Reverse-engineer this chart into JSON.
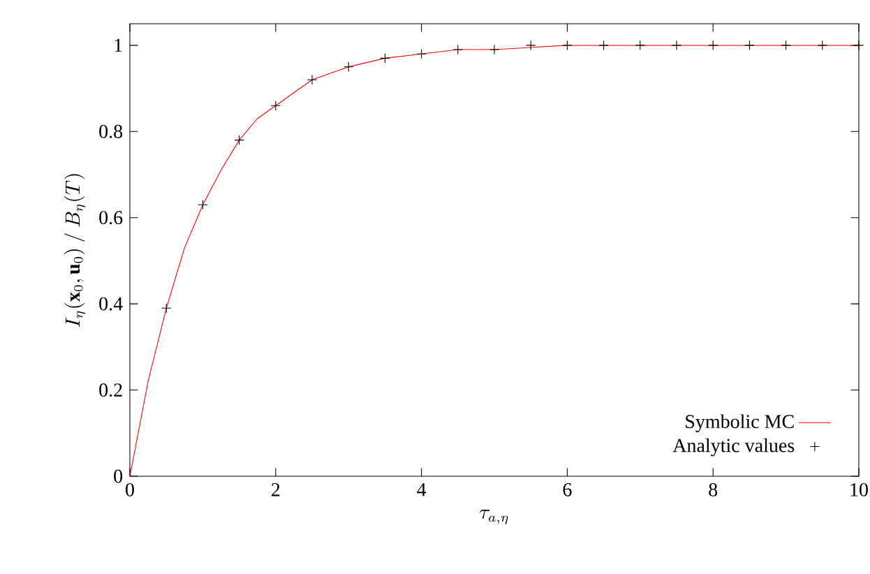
{
  "chart_data": {
    "type": "line",
    "xlabel": "\\tau_{a,\\eta}",
    "ylabel": "I_\\eta(\\mathbf{x}_0, \\mathbf{u}_0)\\ /\\ B_\\eta(T)",
    "xlim": [
      0,
      10
    ],
    "ylim": [
      0,
      1.05
    ],
    "xticks": [
      0,
      2,
      4,
      6,
      8,
      10
    ],
    "yticks": [
      0,
      0.2,
      0.4,
      0.6,
      0.8,
      1
    ],
    "legend": "bottom right",
    "grid": false,
    "series": [
      {
        "name": "Symbolic MC",
        "color": "#ff0000",
        "marker": "none",
        "line_style": "solid",
        "x": [
          0,
          0.25,
          0.5,
          0.75,
          1,
          1.25,
          1.5,
          1.75,
          2,
          2.5,
          3,
          3.5,
          4,
          4.5,
          5,
          6,
          7,
          8,
          10
        ],
        "values": [
          0,
          0.22,
          0.39,
          0.53,
          0.63,
          0.71,
          0.78,
          0.83,
          0.86,
          0.92,
          0.95,
          0.97,
          0.98,
          0.99,
          0.99,
          1,
          1,
          1,
          1
        ]
      },
      {
        "name": "Analytic values",
        "type": "scatter",
        "color": "#000000",
        "marker": "cross",
        "x": [
          0.5,
          1,
          1.5,
          2,
          2.5,
          3,
          3.5,
          4,
          4.5,
          5,
          5.5,
          6,
          6.5,
          7,
          7.5,
          8,
          8.5,
          9,
          9.5,
          10
        ],
        "values": [
          0.39,
          0.63,
          0.78,
          0.86,
          0.92,
          0.95,
          0.97,
          0.98,
          0.99,
          0.99,
          1,
          1,
          1,
          1,
          1,
          1,
          1,
          1,
          1,
          1
        ]
      }
    ]
  }
}
